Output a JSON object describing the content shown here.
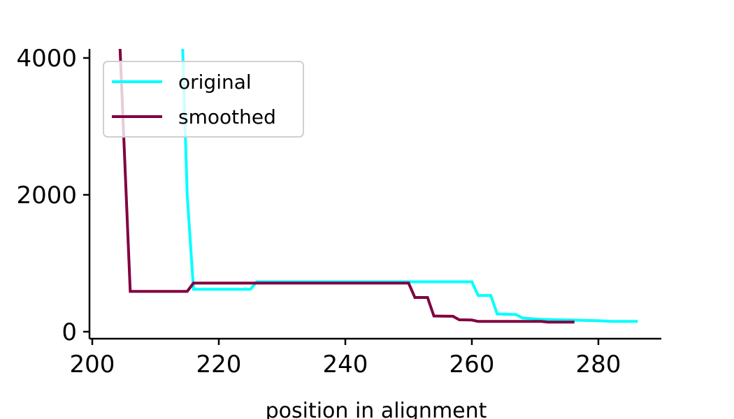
{
  "chart_data": {
    "type": "line",
    "title": "",
    "xlabel": "position in alignment",
    "ylabel": "",
    "xlim": [
      200,
      290
    ],
    "ylim": [
      -70,
      4150
    ],
    "x_ticks": [
      200,
      220,
      240,
      260,
      280
    ],
    "y_ticks": [
      0,
      2000,
      4000
    ],
    "grid": false,
    "legend": "top-left",
    "series": [
      {
        "name": "original",
        "color": "#00ffff",
        "points": [
          [
            214,
            5000
          ],
          [
            215,
            2000
          ],
          [
            216,
            620
          ],
          [
            225,
            620
          ],
          [
            226,
            730
          ],
          [
            260,
            730
          ],
          [
            261,
            530
          ],
          [
            263,
            530
          ],
          [
            264,
            260
          ],
          [
            267,
            250
          ],
          [
            268,
            200
          ],
          [
            271,
            180
          ],
          [
            280,
            160
          ],
          [
            282,
            150
          ],
          [
            286,
            150
          ]
        ]
      },
      {
        "name": "smoothed",
        "color": "#800040",
        "points": [
          [
            204,
            5000
          ],
          [
            206,
            590
          ],
          [
            215,
            590
          ],
          [
            216,
            710
          ],
          [
            250,
            710
          ],
          [
            251,
            500
          ],
          [
            253,
            500
          ],
          [
            254,
            230
          ],
          [
            257,
            225
          ],
          [
            258,
            175
          ],
          [
            260,
            170
          ],
          [
            261,
            150
          ],
          [
            271,
            150
          ],
          [
            272,
            140
          ],
          [
            276,
            140
          ]
        ]
      }
    ]
  }
}
